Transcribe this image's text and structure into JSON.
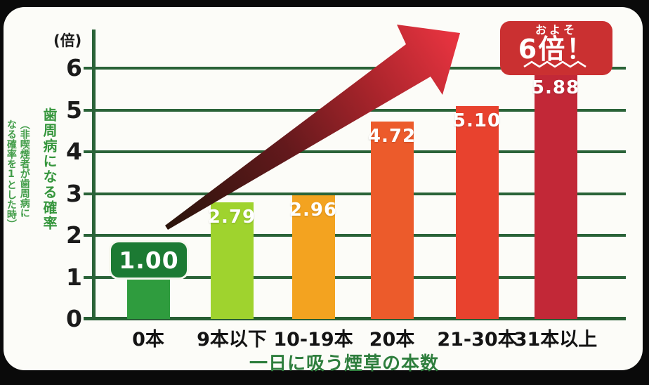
{
  "y_axis": {
    "unit_label": "(倍)",
    "ticks": [
      0,
      1,
      2,
      3,
      4,
      5,
      6
    ]
  },
  "left_label": {
    "main": "歯周病になる確率",
    "sub1": "（非喫煙者が歯周病に",
    "sub2": "なる確率を1とした時）"
  },
  "callout": {
    "line1": "およそ",
    "line2": "6倍！",
    "color": "#ca3031"
  },
  "badge": {
    "color": "#1c7a33"
  },
  "arrow": {
    "description": "rising-trend-arrow",
    "gradient": [
      "#2a140b",
      "#63191c",
      "#a8242b",
      "#e5333f"
    ]
  },
  "chart_data": {
    "type": "bar",
    "title": "およそ6倍！",
    "categories": [
      "0本",
      "9本以下",
      "10-19本",
      "20本",
      "21-30本",
      "31本以上"
    ],
    "values": [
      1.0,
      2.79,
      2.96,
      4.72,
      5.1,
      5.88
    ],
    "value_labels": [
      "1.00",
      "2.79",
      "2.96",
      "4.72",
      "5.10",
      "5.88"
    ],
    "bar_colors": [
      "#2f9c3e",
      "#9fd32e",
      "#f3a320",
      "#ec5b2b",
      "#e8422e",
      "#c22837"
    ],
    "xlabel": "一日に吸う煙草の本数",
    "ylabel": "歯周病になる確率（非喫煙者が歯周病になる確率を1とした時）",
    "ylim": [
      0,
      6
    ],
    "yticks": [
      0,
      1,
      2,
      3,
      4,
      5,
      6
    ],
    "grid": true,
    "grid_color": "#2a6338",
    "legend": false,
    "annotation": "およそ6倍！"
  }
}
